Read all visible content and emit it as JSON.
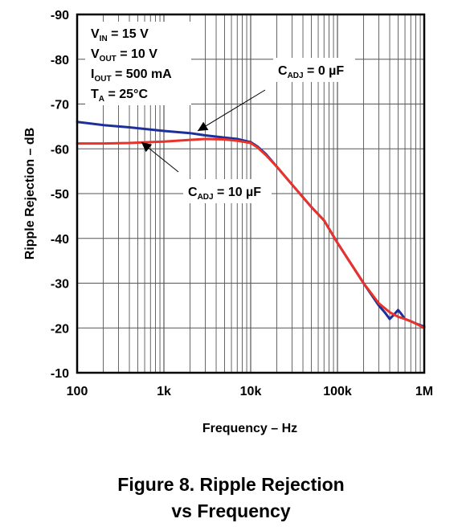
{
  "figure": {
    "caption_line1": "Figure 8. Ripple Rejection",
    "caption_line2": "vs Frequency"
  },
  "chart_data": {
    "type": "line",
    "x_scale": "log",
    "xlabel": "Frequency – Hz",
    "ylabel": "Ripple Rejection – dB",
    "xlim": [
      100,
      1000000
    ],
    "ylim": [
      -10,
      -90
    ],
    "x_ticks": [
      {
        "value": 100,
        "label": "100"
      },
      {
        "value": 1000,
        "label": "1k"
      },
      {
        "value": 10000,
        "label": "10k"
      },
      {
        "value": 100000,
        "label": "100k"
      },
      {
        "value": 1000000,
        "label": "1M"
      }
    ],
    "y_ticks": [
      {
        "value": -90,
        "label": "-90"
      },
      {
        "value": -80,
        "label": "-80"
      },
      {
        "value": -70,
        "label": "-70"
      },
      {
        "value": -60,
        "label": "-60"
      },
      {
        "value": -50,
        "label": "-50"
      },
      {
        "value": -40,
        "label": "-40"
      },
      {
        "value": -30,
        "label": "-30"
      },
      {
        "value": -20,
        "label": "-20"
      },
      {
        "value": -10,
        "label": "-10"
      }
    ],
    "grid": true,
    "conditions": [
      {
        "main": "V",
        "sub": "IN",
        "rest": " = 15 V"
      },
      {
        "main": "V",
        "sub": "OUT",
        "rest": " = 10 V"
      },
      {
        "main": "I",
        "sub": "OUT",
        "rest": " = 500 mA"
      },
      {
        "main": "T",
        "sub": "A",
        "rest": " = 25°C"
      }
    ],
    "series": [
      {
        "label": {
          "main": "C",
          "sub": "ADJ",
          "rest": " = 0 µF"
        },
        "color": "#1f2f9a",
        "x": [
          100,
          200,
          400,
          700,
          1000,
          2000,
          3000,
          5000,
          7000,
          10000,
          12000,
          15000,
          20000,
          30000,
          50000,
          70000,
          100000,
          200000,
          300000,
          350000,
          400000,
          450000,
          500000,
          550000,
          600000,
          700000,
          800000,
          1000000
        ],
        "y": [
          -66,
          -65.3,
          -64.8,
          -64.3,
          -64,
          -63.5,
          -63,
          -62.5,
          -62.2,
          -61.5,
          -60.5,
          -58.8,
          -56,
          -52,
          -47,
          -44,
          -39,
          -30,
          -25,
          -23.5,
          -22,
          -23,
          -24,
          -23,
          -22,
          -21.5,
          -21,
          -20.3
        ]
      },
      {
        "label": {
          "main": "C",
          "sub": "ADJ",
          "rest": " = 10 µF"
        },
        "color": "#e8322a",
        "x": [
          100,
          200,
          400,
          700,
          1000,
          2000,
          3000,
          5000,
          7000,
          10000,
          12000,
          15000,
          20000,
          30000,
          50000,
          70000,
          100000,
          200000,
          300000,
          400000,
          500000,
          600000,
          700000,
          800000,
          1000000
        ],
        "y": [
          -61.2,
          -61.2,
          -61.3,
          -61.5,
          -61.6,
          -62,
          -62.2,
          -62.1,
          -61.8,
          -61.3,
          -60.3,
          -58.6,
          -56,
          -52,
          -47,
          -44,
          -39,
          -30,
          -25.5,
          -23.5,
          -22.5,
          -22,
          -21.5,
          -21,
          -20
        ]
      }
    ]
  }
}
